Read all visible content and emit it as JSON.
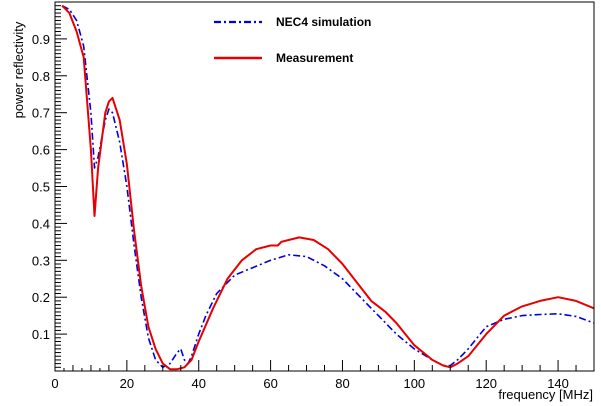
{
  "chart_data": {
    "type": "line",
    "xlabel": "frequency [MHz]",
    "ylabel": "power reflectivity",
    "xlim": [
      0,
      150
    ],
    "ylim": [
      0.0,
      1.0
    ],
    "x_ticks": [
      0,
      20,
      40,
      60,
      80,
      100,
      120,
      140
    ],
    "x_tick_labels": [
      "0",
      "20",
      "40",
      "60",
      "80",
      "100",
      "120",
      "140"
    ],
    "y_ticks": [
      0.1,
      0.2,
      0.3,
      0.4,
      0.5,
      0.6,
      0.7,
      0.8,
      0.9
    ],
    "y_tick_labels": [
      "0.1",
      "0.2",
      "0.3",
      "0.4",
      "0.5",
      "0.6",
      "0.7",
      "0.8",
      "0.9"
    ],
    "legend_position": "top-center",
    "grid": false,
    "series": [
      {
        "name": "NEC4 simulation",
        "color": "#0000dd",
        "style": "dash-dot",
        "x": [
          2,
          4,
          6,
          8,
          10,
          11,
          12,
          14,
          15,
          16,
          18,
          20,
          22,
          24,
          26,
          28,
          30,
          32,
          34,
          35,
          36,
          37,
          38,
          40,
          42,
          45,
          50,
          55,
          60,
          65,
          70,
          75,
          80,
          85,
          90,
          95,
          100,
          105,
          108,
          110,
          112,
          115,
          120,
          125,
          130,
          135,
          140,
          145,
          150
        ],
        "y": [
          0.99,
          0.98,
          0.95,
          0.88,
          0.7,
          0.55,
          0.58,
          0.68,
          0.71,
          0.7,
          0.62,
          0.5,
          0.34,
          0.2,
          0.09,
          0.03,
          0.01,
          0.02,
          0.05,
          0.06,
          0.03,
          0.02,
          0.04,
          0.1,
          0.15,
          0.21,
          0.26,
          0.28,
          0.3,
          0.315,
          0.31,
          0.285,
          0.25,
          0.2,
          0.15,
          0.1,
          0.06,
          0.03,
          0.015,
          0.015,
          0.03,
          0.06,
          0.12,
          0.14,
          0.15,
          0.153,
          0.155,
          0.148,
          0.13
        ]
      },
      {
        "name": "Measurement",
        "color": "#e60000",
        "style": "solid",
        "x": [
          2,
          4,
          6,
          8,
          10,
          11,
          12,
          14,
          15,
          16,
          18,
          20,
          22,
          24,
          26,
          28,
          30,
          32,
          34,
          36,
          38,
          40,
          44,
          48,
          52,
          56,
          60,
          62,
          63,
          65,
          68,
          72,
          76,
          80,
          84,
          88,
          90,
          92,
          95,
          100,
          105,
          108,
          110,
          112,
          115,
          120,
          125,
          130,
          135,
          140,
          145,
          150
        ],
        "y": [
          0.99,
          0.97,
          0.92,
          0.85,
          0.6,
          0.42,
          0.55,
          0.7,
          0.73,
          0.74,
          0.68,
          0.56,
          0.38,
          0.23,
          0.12,
          0.06,
          0.02,
          0.005,
          0.005,
          0.01,
          0.03,
          0.08,
          0.17,
          0.25,
          0.3,
          0.33,
          0.34,
          0.34,
          0.35,
          0.355,
          0.362,
          0.355,
          0.33,
          0.29,
          0.24,
          0.19,
          0.175,
          0.16,
          0.13,
          0.07,
          0.03,
          0.015,
          0.01,
          0.02,
          0.04,
          0.1,
          0.15,
          0.175,
          0.19,
          0.2,
          0.19,
          0.17
        ]
      }
    ]
  }
}
